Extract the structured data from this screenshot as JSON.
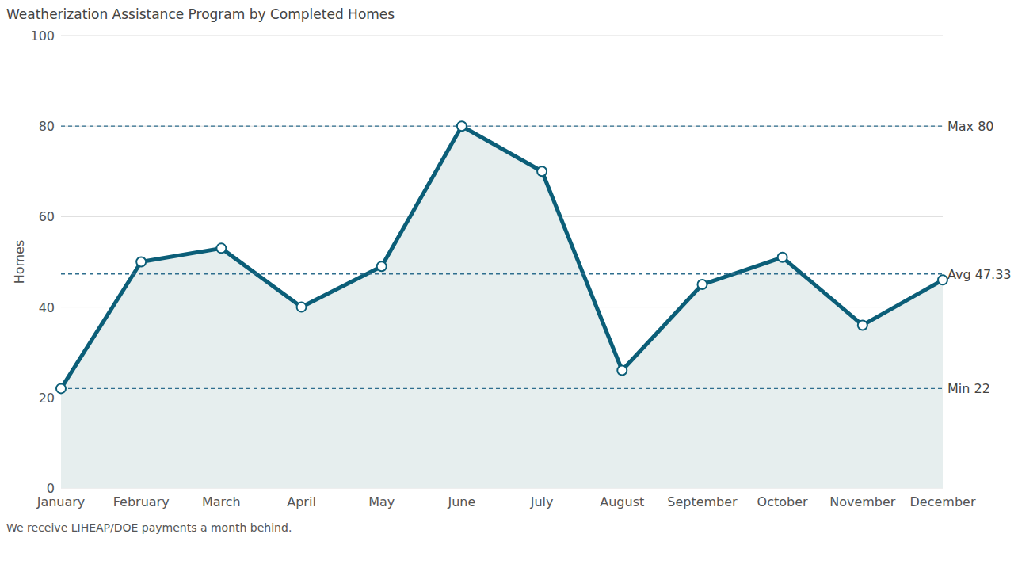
{
  "chart_data": {
    "type": "area",
    "title": "Weatherization Assistance Program by Completed Homes",
    "y_label": "Homes",
    "footnote": "We receive LIHEAP/DOE payments a month behind.",
    "categories": [
      "January",
      "February",
      "March",
      "April",
      "May",
      "June",
      "July",
      "August",
      "September",
      "October",
      "November",
      "December"
    ],
    "values": [
      22,
      50,
      53,
      40,
      49,
      80,
      70,
      26,
      45,
      51,
      36,
      46
    ],
    "color": "#0b5e78",
    "marker": "circle",
    "ylim": [
      0,
      100
    ],
    "yticks": [
      0,
      20,
      40,
      60,
      80,
      100
    ],
    "grid": true,
    "annotations": [
      {
        "value": 80,
        "label": "Max 80"
      },
      {
        "value": 47.33,
        "label": "Avg 47.33"
      },
      {
        "value": 22,
        "label": "Min 22"
      }
    ]
  }
}
